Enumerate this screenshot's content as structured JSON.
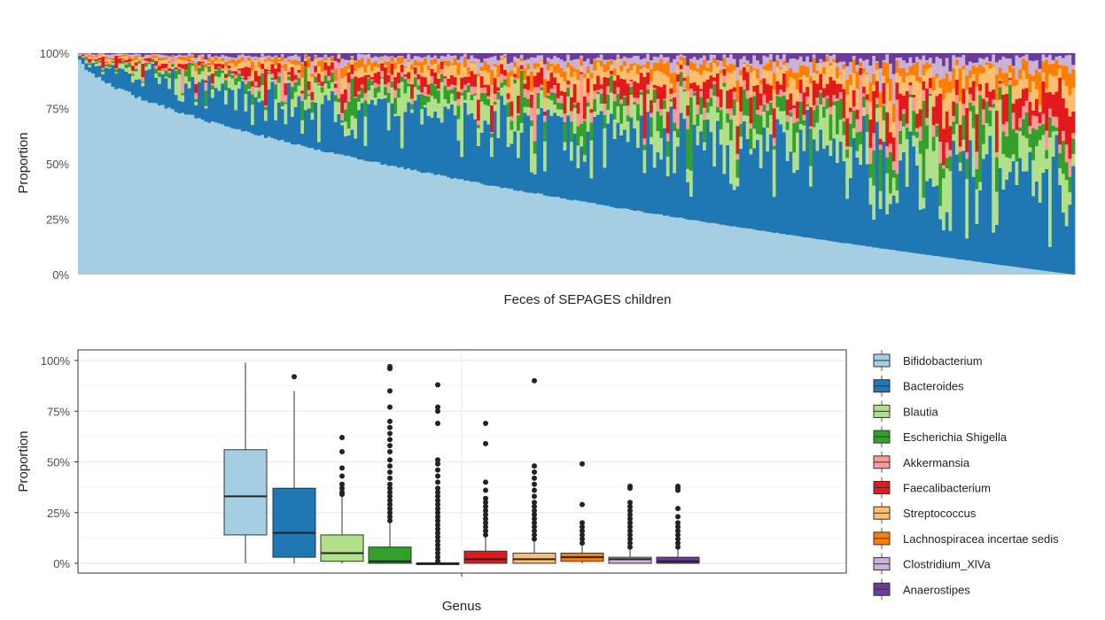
{
  "chart_data": [
    {
      "type": "bar",
      "stacked": true,
      "xlabel": "Feces of SEPAGES children",
      "ylabel": "Proportion",
      "yticks": [
        "0%",
        "25%",
        "50%",
        "75%",
        "100%"
      ],
      "ylim": [
        0,
        1
      ],
      "n_samples": 300,
      "ordering": "descending by Bifidobacterium",
      "bifidobacterium_range": [
        0.99,
        0.0
      ],
      "grid": false,
      "series": [
        {
          "name": "Bifidobacterium"
        },
        {
          "name": "Bacteroides"
        },
        {
          "name": "Blautia"
        },
        {
          "name": "Escherichia Shigella"
        },
        {
          "name": "Akkermansia"
        },
        {
          "name": "Faecalibacterium"
        },
        {
          "name": "Streptococcus"
        },
        {
          "name": "Lachnospiracea incertae sedis"
        },
        {
          "name": "Clostridium_XlVa"
        },
        {
          "name": "Anaerostipes"
        }
      ]
    },
    {
      "type": "box",
      "xlabel": "Genus",
      "ylabel": "Proportion",
      "yticks": [
        "0%",
        "25%",
        "50%",
        "75%",
        "100%"
      ],
      "ylim": [
        0,
        1
      ],
      "grid": true,
      "legend_position": "right",
      "boxes": [
        {
          "name": "Bifidobacterium",
          "min": 0.0,
          "q1": 0.14,
          "median": 0.33,
          "q3": 0.56,
          "max": 0.99,
          "outliers": []
        },
        {
          "name": "Bacteroides",
          "min": 0.0,
          "q1": 0.03,
          "median": 0.15,
          "q3": 0.37,
          "max": 0.85,
          "outliers": [
            0.92
          ]
        },
        {
          "name": "Blautia",
          "min": 0.0,
          "q1": 0.01,
          "median": 0.05,
          "q3": 0.14,
          "max": 0.33,
          "outliers": [
            0.34,
            0.35,
            0.37,
            0.39,
            0.43,
            0.47,
            0.55,
            0.62
          ]
        },
        {
          "name": "Escherichia Shigella",
          "min": 0.0,
          "q1": 0.0,
          "median": 0.01,
          "q3": 0.08,
          "max": 0.2,
          "outliers": [
            0.21,
            0.23,
            0.25,
            0.27,
            0.29,
            0.31,
            0.33,
            0.35,
            0.37,
            0.39,
            0.42,
            0.45,
            0.48,
            0.51,
            0.55,
            0.58,
            0.61,
            0.64,
            0.67,
            0.7,
            0.77,
            0.85,
            0.96,
            0.97
          ]
        },
        {
          "name": "Akkermansia",
          "min": 0.0,
          "q1": 0.0,
          "median": 0.0,
          "q3": 0.0,
          "max": 0.0,
          "outliers": [
            0.01,
            0.03,
            0.05,
            0.07,
            0.09,
            0.11,
            0.13,
            0.15,
            0.17,
            0.19,
            0.21,
            0.23,
            0.25,
            0.27,
            0.29,
            0.31,
            0.33,
            0.35,
            0.37,
            0.4,
            0.43,
            0.46,
            0.49,
            0.51,
            0.69,
            0.75,
            0.77,
            0.88
          ]
        },
        {
          "name": "Faecalibacterium",
          "min": 0.0,
          "q1": 0.0,
          "median": 0.02,
          "q3": 0.06,
          "max": 0.13,
          "outliers": [
            0.14,
            0.16,
            0.18,
            0.2,
            0.22,
            0.24,
            0.26,
            0.28,
            0.3,
            0.32,
            0.36,
            0.4,
            0.59,
            0.69
          ]
        },
        {
          "name": "Streptococcus",
          "min": 0.0,
          "q1": 0.0,
          "median": 0.02,
          "q3": 0.05,
          "max": 0.11,
          "outliers": [
            0.12,
            0.14,
            0.16,
            0.18,
            0.2,
            0.22,
            0.24,
            0.26,
            0.28,
            0.3,
            0.33,
            0.36,
            0.39,
            0.42,
            0.45,
            0.48,
            0.9
          ]
        },
        {
          "name": "Lachnospiracea incertae sedis",
          "min": 0.0,
          "q1": 0.01,
          "median": 0.03,
          "q3": 0.05,
          "max": 0.09,
          "outliers": [
            0.1,
            0.12,
            0.14,
            0.16,
            0.18,
            0.2,
            0.29,
            0.49
          ]
        },
        {
          "name": "Clostridium_XlVa",
          "min": 0.0,
          "q1": 0.0,
          "median": 0.02,
          "q3": 0.03,
          "max": 0.07,
          "outliers": [
            0.08,
            0.1,
            0.12,
            0.14,
            0.16,
            0.18,
            0.2,
            0.22,
            0.24,
            0.26,
            0.28,
            0.3,
            0.37,
            0.38
          ]
        },
        {
          "name": "Anaerostipes",
          "min": 0.0,
          "q1": 0.0,
          "median": 0.01,
          "q3": 0.03,
          "max": 0.07,
          "outliers": [
            0.08,
            0.1,
            0.12,
            0.14,
            0.16,
            0.18,
            0.2,
            0.23,
            0.27,
            0.36,
            0.37,
            0.38
          ]
        }
      ]
    }
  ],
  "legend": {
    "items": [
      {
        "label": "Bifidobacterium",
        "color": "#a6cee3"
      },
      {
        "label": "Bacteroides",
        "color": "#1f78b4"
      },
      {
        "label": "Blautia",
        "color": "#b2df8a"
      },
      {
        "label": "Escherichia Shigella",
        "color": "#33a02c"
      },
      {
        "label": "Akkermansia",
        "color": "#fb9a99"
      },
      {
        "label": "Faecalibacterium",
        "color": "#e31a1c"
      },
      {
        "label": "Streptococcus",
        "color": "#fdbf6f"
      },
      {
        "label": "Lachnospiracea incertae sedis",
        "color": "#ff7f00"
      },
      {
        "label": "Clostridium_XlVa",
        "color": "#cab2d6"
      },
      {
        "label": "Anaerostipes",
        "color": "#6a3d9a"
      }
    ]
  }
}
